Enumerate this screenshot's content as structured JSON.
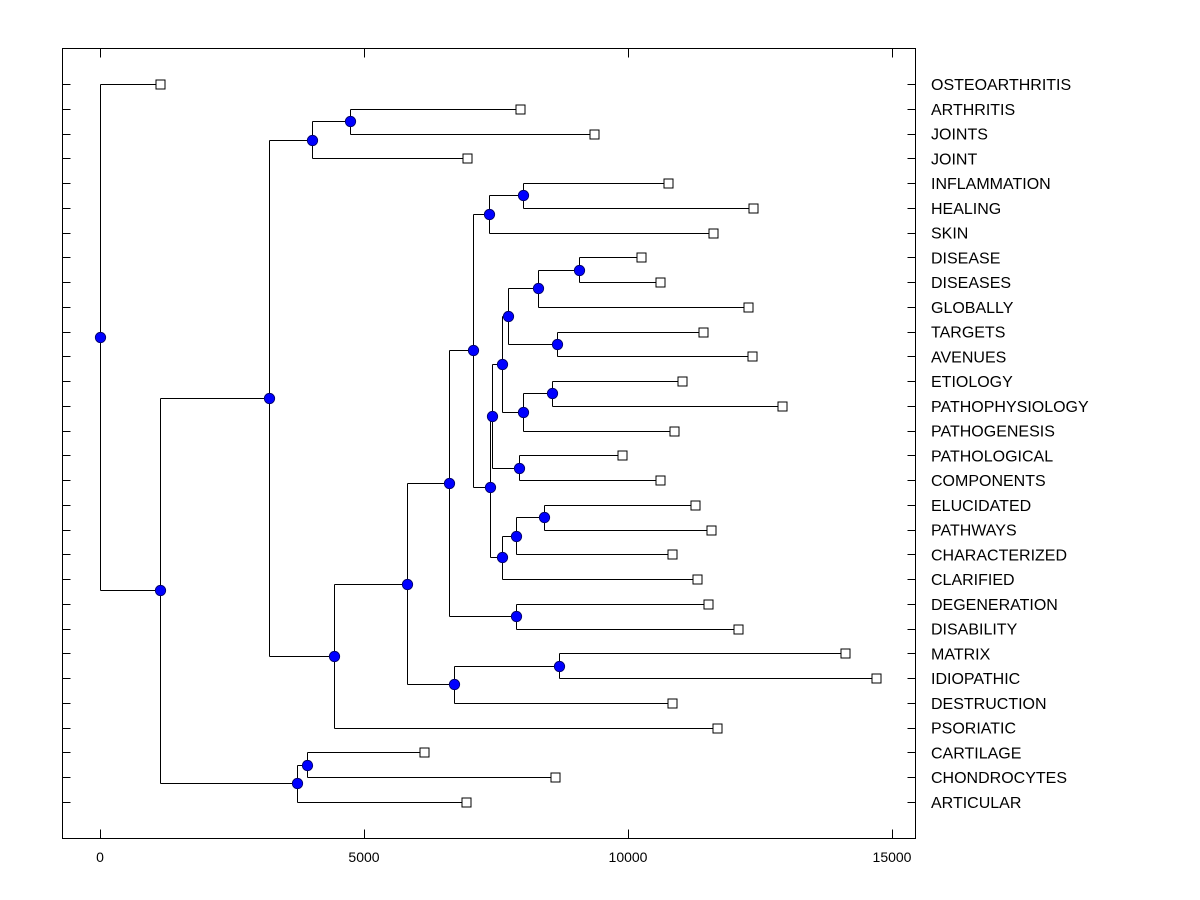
{
  "chart_data": {
    "type": "dendrogram",
    "title": "",
    "xlabel": "",
    "ylabel": "",
    "xlim": [
      -700,
      15450
    ],
    "x_ticks": [
      0,
      5000,
      10000,
      15000
    ],
    "x_tick_labels": [
      "0",
      "5000",
      "10000",
      "15000"
    ],
    "grid": false,
    "orientation": "root-left, leaves-right",
    "colors": {
      "node": "#0000ff",
      "leaf": "#ffffff",
      "line": "#000000"
    },
    "leaves": [
      {
        "label": "OSTEOARTHRITIS",
        "value": 1136
      },
      {
        "label": "ARTHRITIS",
        "value": 7955
      },
      {
        "label": "JOINTS",
        "value": 9356
      },
      {
        "label": "JOINT",
        "value": 6951
      },
      {
        "label": "INFLAMMATION",
        "value": 10758
      },
      {
        "label": "HEALING",
        "value": 12367
      },
      {
        "label": "SKIN",
        "value": 11610
      },
      {
        "label": "DISEASE",
        "value": 10246
      },
      {
        "label": "DISEASES",
        "value": 10606
      },
      {
        "label": "GLOBALLY",
        "value": 12273
      },
      {
        "label": "TARGETS",
        "value": 11420
      },
      {
        "label": "AVENUES",
        "value": 12348
      },
      {
        "label": "ETIOLOGY",
        "value": 11023
      },
      {
        "label": "PATHOPHYSIOLOGY",
        "value": 12917
      },
      {
        "label": "PATHOGENESIS",
        "value": 10871
      },
      {
        "label": "PATHOLOGICAL",
        "value": 9886
      },
      {
        "label": "COMPONENTS",
        "value": 10606
      },
      {
        "label": "ELUCIDATED",
        "value": 11269
      },
      {
        "label": "PATHWAYS",
        "value": 11572
      },
      {
        "label": "CHARACTERIZED",
        "value": 10833
      },
      {
        "label": "CLARIFIED",
        "value": 11307
      },
      {
        "label": "DEGENERATION",
        "value": 11515
      },
      {
        "label": "DISABILITY",
        "value": 12083
      },
      {
        "label": "MATRIX",
        "value": 14110
      },
      {
        "label": "IDIOPATHIC",
        "value": 14697
      },
      {
        "label": "DESTRUCTION",
        "value": 10833
      },
      {
        "label": "PSORIATIC",
        "value": 11686
      },
      {
        "label": "CARTILAGE",
        "value": 6136
      },
      {
        "label": "CHONDROCYTES",
        "value": 8617
      },
      {
        "label": "ARTICULAR",
        "value": 6932
      }
    ],
    "tree": {
      "value": 0,
      "children": [
        {
          "leaf": 0
        },
        {
          "value": 1136,
          "children": [
            {
              "value": 3201,
              "children": [
                {
                  "value": 4015,
                  "children": [
                    {
                      "value": 4735,
                      "children": [
                        {
                          "leaf": 1
                        },
                        {
                          "leaf": 2
                        }
                      ]
                    },
                    {
                      "leaf": 3
                    }
                  ]
                },
                {
                  "value": 4432,
                  "children": [
                    {
                      "value": 5814,
                      "children": [
                        {
                          "value": 6610,
                          "children": [
                            {
                              "value": 7064,
                              "children": [
                                {
                                  "value": 7367,
                                  "children": [
                                    {
                                      "value": 8011,
                                      "children": [
                                        {
                                          "leaf": 4
                                        },
                                        {
                                          "leaf": 5
                                        }
                                      ]
                                    },
                                    {
                                      "leaf": 6
                                    }
                                  ]
                                },
                                {
                                  "value": 7386,
                                  "children": [
                                    {
                                      "value": 7424,
                                      "children": [
                                        {
                                          "value": 7614,
                                          "children": [
                                            {
                                              "value": 7727,
                                              "children": [
                                                {
                                                  "value": 8295,
                                                  "children": [
                                                    {
                                                      "value": 9072,
                                                      "children": [
                                                        {
                                                          "leaf": 7
                                                        },
                                                        {
                                                          "leaf": 8
                                                        }
                                                      ]
                                                    },
                                                    {
                                                      "leaf": 9
                                                    }
                                                  ]
                                                },
                                                {
                                                  "value": 8655,
                                                  "children": [
                                                    {
                                                      "leaf": 10
                                                    },
                                                    {
                                                      "leaf": 11
                                                    }
                                                  ]
                                                }
                                              ]
                                            },
                                            {
                                              "value": 8011,
                                              "children": [
                                                {
                                                  "value": 8561,
                                                  "children": [
                                                    {
                                                      "leaf": 12
                                                    },
                                                    {
                                                      "leaf": 13
                                                    }
                                                  ]
                                                },
                                                {
                                                  "leaf": 14
                                                }
                                              ]
                                            }
                                          ]
                                        },
                                        {
                                          "value": 7936,
                                          "children": [
                                            {
                                              "leaf": 15
                                            },
                                            {
                                              "leaf": 16
                                            }
                                          ]
                                        }
                                      ]
                                    },
                                    {
                                      "value": 7614,
                                      "children": [
                                        {
                                          "value": 7879,
                                          "children": [
                                            {
                                              "value": 8409,
                                              "children": [
                                                {
                                                  "leaf": 17
                                                },
                                                {
                                                  "leaf": 18
                                                }
                                              ]
                                            },
                                            {
                                              "leaf": 19
                                            }
                                          ]
                                        },
                                        {
                                          "leaf": 20
                                        }
                                      ]
                                    }
                                  ]
                                }
                              ]
                            },
                            {
                              "value": 7879,
                              "children": [
                                {
                                  "leaf": 21
                                },
                                {
                                  "leaf": 22
                                }
                              ]
                            }
                          ]
                        },
                        {
                          "value": 6705,
                          "children": [
                            {
                              "value": 8693,
                              "children": [
                                {
                                  "leaf": 23
                                },
                                {
                                  "leaf": 24
                                }
                              ]
                            },
                            {
                              "leaf": 25
                            }
                          ]
                        }
                      ]
                    },
                    {
                      "leaf": 26
                    }
                  ]
                }
              ]
            },
            {
              "value": 3731,
              "children": [
                {
                  "value": 3920,
                  "children": [
                    {
                      "leaf": 27
                    },
                    {
                      "leaf": 28
                    }
                  ]
                },
                {
                  "leaf": 29
                }
              ]
            }
          ]
        }
      ]
    }
  }
}
